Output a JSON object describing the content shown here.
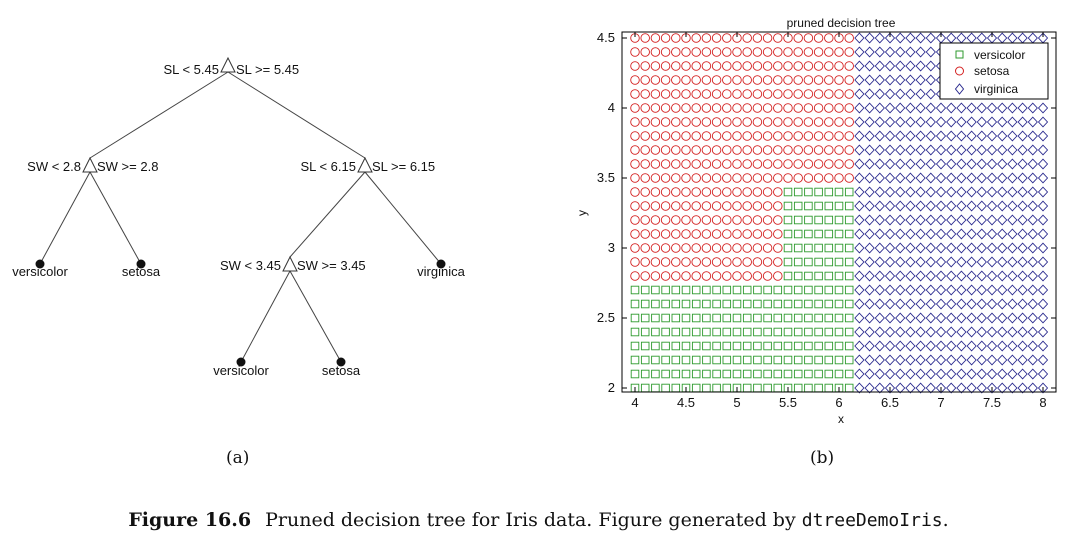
{
  "tree": {
    "root": {
      "left": "SL < 5.45",
      "right": "SL >= 5.45"
    },
    "n1": {
      "left": "SW < 2.8",
      "right": "SW >= 2.8"
    },
    "n2": {
      "left": "SL < 6.15",
      "right": "SL >= 6.15"
    },
    "n3": {
      "left": "SW < 3.45",
      "right": "SW >= 3.45"
    },
    "leaves": [
      "versicolor",
      "setosa",
      "versicolor",
      "setosa",
      "virginica"
    ]
  },
  "subfig_a": "(a)",
  "subfig_b": "(b)",
  "chart_data": {
    "type": "scatter",
    "title": "pruned decision tree",
    "xlabel": "x",
    "ylabel": "y",
    "xlim": [
      4,
      8
    ],
    "ylim": [
      2,
      4.5
    ],
    "xticks": [
      "4",
      "4.5",
      "5",
      "5.5",
      "6",
      "6.5",
      "7",
      "7.5",
      "8"
    ],
    "yticks": [
      "2",
      "2.5",
      "3",
      "3.5",
      "4",
      "4.5"
    ],
    "grid": {
      "x_start": 4,
      "x_step": 0.1,
      "x_count": 41,
      "y_start": 2,
      "y_step": 0.1,
      "y_count": 26
    },
    "decision_rules": "x<5.45 & y<2.8 -> versicolor; x<5.45 & y>=2.8 -> setosa; 5.45<=x<6.15 & y<3.45 -> versicolor; 5.45<=x<6.15 & y>=3.45 -> setosa; x>=6.15 -> virginica",
    "series": [
      {
        "name": "versicolor",
        "marker": "square",
        "color": "#2e9a2e"
      },
      {
        "name": "setosa",
        "marker": "circle",
        "color": "#d42020"
      },
      {
        "name": "virginica",
        "marker": "diamond",
        "color": "#2b2b8f"
      }
    ],
    "legend_position": "top-right"
  },
  "caption": {
    "label": "Figure 16.6",
    "text": "Pruned decision tree for Iris data. Figure generated by ",
    "code": "dtreeDemoIris",
    "end": "."
  }
}
